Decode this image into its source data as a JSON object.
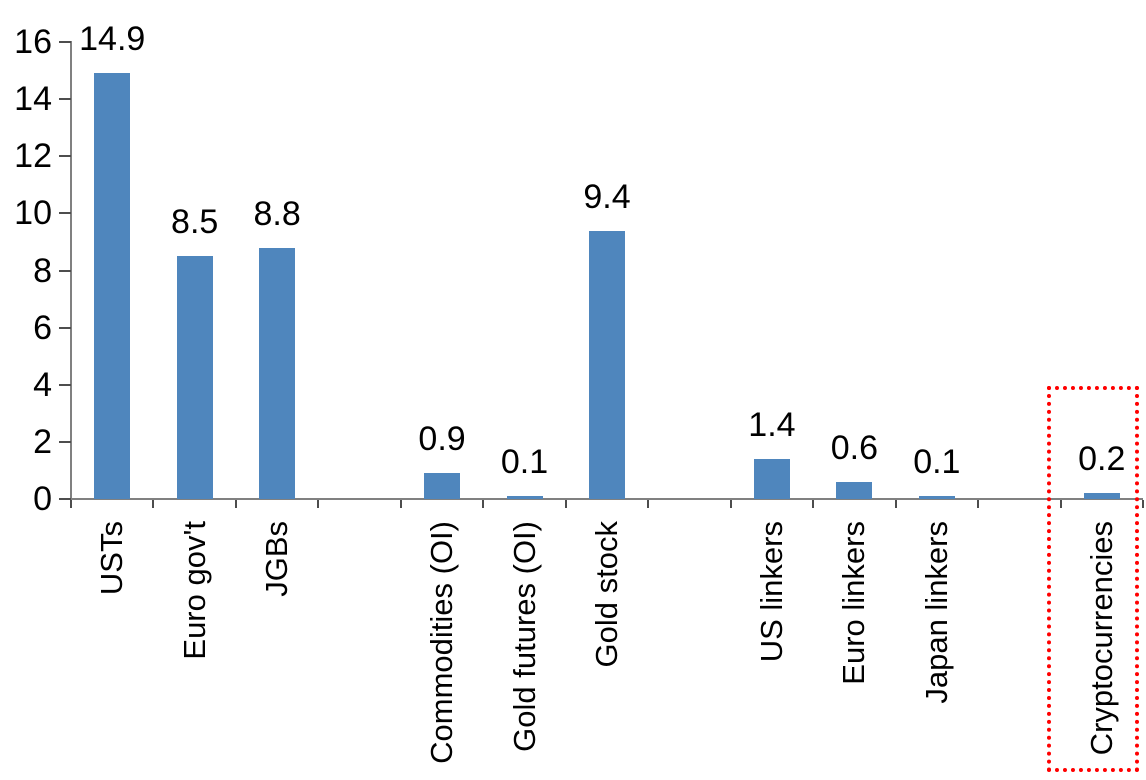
{
  "chart_data": {
    "type": "bar",
    "title": "",
    "xlabel": "",
    "ylabel": "",
    "categories": [
      "USTs",
      "Euro gov't",
      "JGBs",
      "Commodities (OI)",
      "Gold futures (OI)",
      "Gold stock",
      "US linkers",
      "Euro linkers",
      "Japan linkers",
      "Cryptocurrencies"
    ],
    "values": [
      14.9,
      8.5,
      8.8,
      0.9,
      0.1,
      9.4,
      1.4,
      0.6,
      0.1,
      0.2
    ],
    "value_labels": [
      "14.9",
      "8.5",
      "8.8",
      "0.9",
      "0.1",
      "9.4",
      "1.4",
      "0.6",
      "0.1",
      "0.2"
    ],
    "slots": [
      0,
      1,
      2,
      4,
      5,
      6,
      8,
      9,
      10,
      12
    ],
    "slot_count": 13,
    "ylim": [
      0,
      16
    ],
    "ytick_step": 2,
    "ytick_labels": [
      "0",
      "2",
      "4",
      "6",
      "8",
      "10",
      "12",
      "14",
      "16"
    ],
    "grid": "off",
    "legend": "none",
    "bar_color": "#4f86bd",
    "axis_color": "#808080",
    "tick_color": "#4d4d4d",
    "text_color": "#000000",
    "highlight": {
      "target": "Cryptocurrencies",
      "shape": "dotted-rectangle",
      "color": "#ff0000"
    }
  }
}
